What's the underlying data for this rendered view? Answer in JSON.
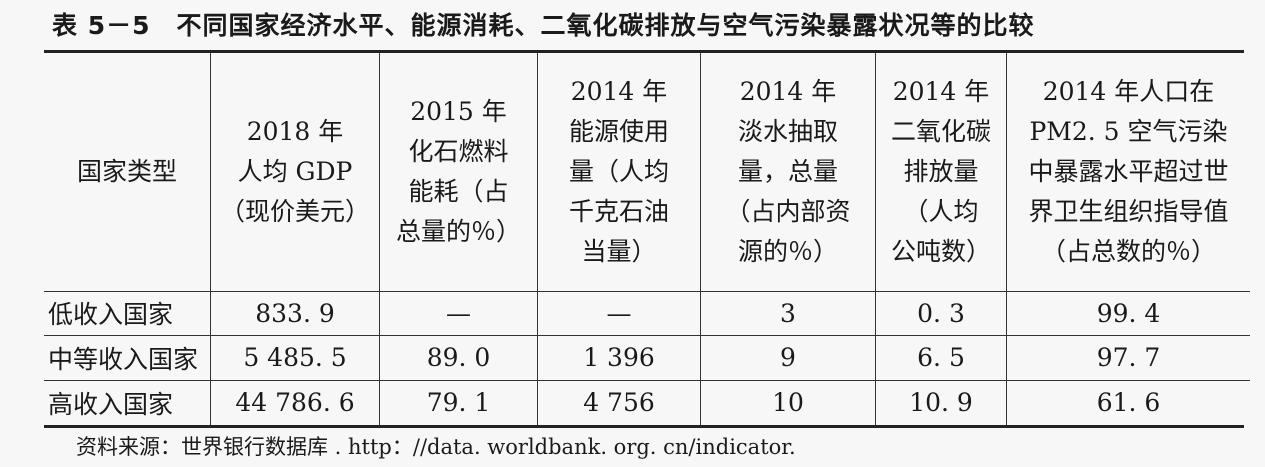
{
  "title": "表 5－5　不同国家经济水平、能源消耗、二氧化碳排放与空气污染暴露状况等的比较",
  "header": [
    [
      "国家类型"
    ],
    [
      "2018 年",
      "人均 GDP",
      "（现价美元）"
    ],
    [
      "2015 年",
      "化石燃料",
      "能耗（占",
      "总量的％）"
    ],
    [
      "2014 年",
      "能源使用",
      "量（人均",
      "千克石油",
      "当量）"
    ],
    [
      "2014 年",
      "淡水抽取",
      "量，总量",
      "（占内部资",
      "源的％）"
    ],
    [
      "2014 年",
      "二氧化碳",
      "排放量",
      "（人均",
      "公吨数）"
    ],
    [
      "2014 年人口在",
      "PM2. 5 空气污染",
      "中暴露水平超过世",
      "界卫生组织指导值",
      "（占总数的％）"
    ]
  ],
  "rows": [
    [
      "低收入国家",
      "833. 9",
      "—",
      "—",
      "3",
      "0. 3",
      "99. 4"
    ],
    [
      "中等收入国家",
      "5 485. 5",
      "89. 0",
      "1 396",
      "9",
      "6. 5",
      "97. 7"
    ],
    [
      "高收入国家",
      "44 786. 6",
      "79. 1",
      "4 756",
      "10",
      "10. 9",
      "61. 6"
    ]
  ],
  "source": "资料来源：世界银行数据库 . http：//data. worldbank. org. cn/indicator."
}
